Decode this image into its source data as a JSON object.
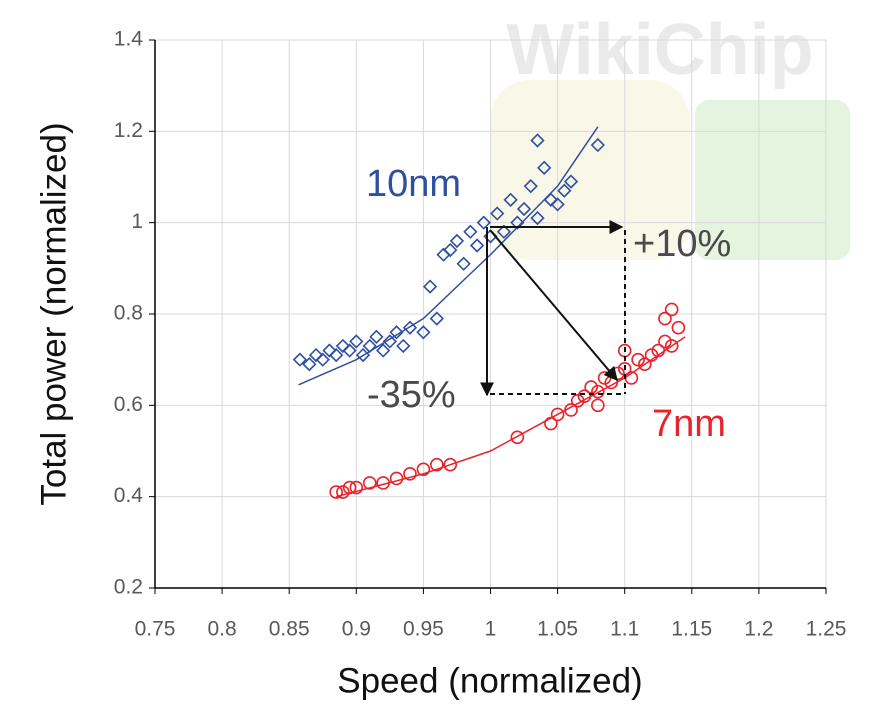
{
  "chart_data": {
    "type": "scatter",
    "watermark": "WikiChip",
    "x_label": "Speed (normalized)",
    "y_label": "Total power (normalized)",
    "xlim": [
      0.75,
      1.25
    ],
    "ylim": [
      0.2,
      1.4
    ],
    "xticks": [
      0.75,
      0.8,
      0.85,
      0.9,
      0.95,
      1,
      1.05,
      1.1,
      1.15,
      1.2,
      1.25
    ],
    "yticks": [
      0.2,
      0.4,
      0.6,
      0.8,
      1,
      1.2,
      1.4
    ],
    "grid": true,
    "series": [
      {
        "name": "10nm",
        "color": "#2f4f9f",
        "marker": "diamond",
        "x": [
          0.858,
          0.865,
          0.87,
          0.875,
          0.88,
          0.885,
          0.89,
          0.895,
          0.9,
          0.905,
          0.91,
          0.915,
          0.92,
          0.925,
          0.93,
          0.935,
          0.94,
          0.95,
          0.96,
          0.955,
          0.965,
          0.97,
          0.975,
          0.98,
          0.985,
          0.99,
          0.995,
          1.0,
          1.005,
          1.01,
          1.015,
          1.02,
          1.025,
          1.03,
          1.035,
          1.04,
          1.045,
          1.05,
          1.055,
          1.06,
          1.08,
          1.035
        ],
        "values": [
          0.7,
          0.69,
          0.71,
          0.7,
          0.72,
          0.71,
          0.73,
          0.72,
          0.74,
          0.71,
          0.73,
          0.75,
          0.72,
          0.74,
          0.76,
          0.73,
          0.77,
          0.76,
          0.79,
          0.86,
          0.93,
          0.94,
          0.96,
          0.91,
          0.98,
          0.95,
          1.0,
          0.97,
          1.02,
          0.98,
          1.05,
          1.0,
          1.03,
          1.08,
          1.01,
          1.12,
          1.05,
          1.04,
          1.07,
          1.09,
          1.17,
          1.18
        ],
        "trend_x": [
          0.857,
          0.9,
          0.95,
          1.0,
          1.05,
          1.08
        ],
        "trend_y": [
          0.645,
          0.7,
          0.79,
          0.93,
          1.08,
          1.21
        ]
      },
      {
        "name": "7nm",
        "color": "#e8232b",
        "marker": "circle",
        "x": [
          0.885,
          0.89,
          0.895,
          0.9,
          0.91,
          0.92,
          0.93,
          0.94,
          0.95,
          0.96,
          0.97,
          1.02,
          1.045,
          1.06,
          1.065,
          1.07,
          1.075,
          1.08,
          1.085,
          1.09,
          1.095,
          1.1,
          1.105,
          1.11,
          1.115,
          1.12,
          1.125,
          1.13,
          1.135,
          1.14,
          1.13,
          1.135,
          1.1,
          1.08,
          1.05
        ],
        "values": [
          0.41,
          0.41,
          0.42,
          0.42,
          0.43,
          0.43,
          0.44,
          0.45,
          0.46,
          0.47,
          0.47,
          0.53,
          0.56,
          0.59,
          0.61,
          0.62,
          0.64,
          0.63,
          0.66,
          0.65,
          0.67,
          0.68,
          0.66,
          0.7,
          0.69,
          0.71,
          0.72,
          0.74,
          0.73,
          0.77,
          0.79,
          0.81,
          0.72,
          0.6,
          0.58
        ],
        "trend_x": [
          0.885,
          0.95,
          1.0,
          1.05,
          1.1,
          1.145
        ],
        "trend_y": [
          0.4,
          0.45,
          0.5,
          0.58,
          0.66,
          0.75
        ]
      }
    ],
    "annotations": [
      "+10%",
      "-35%"
    ]
  }
}
